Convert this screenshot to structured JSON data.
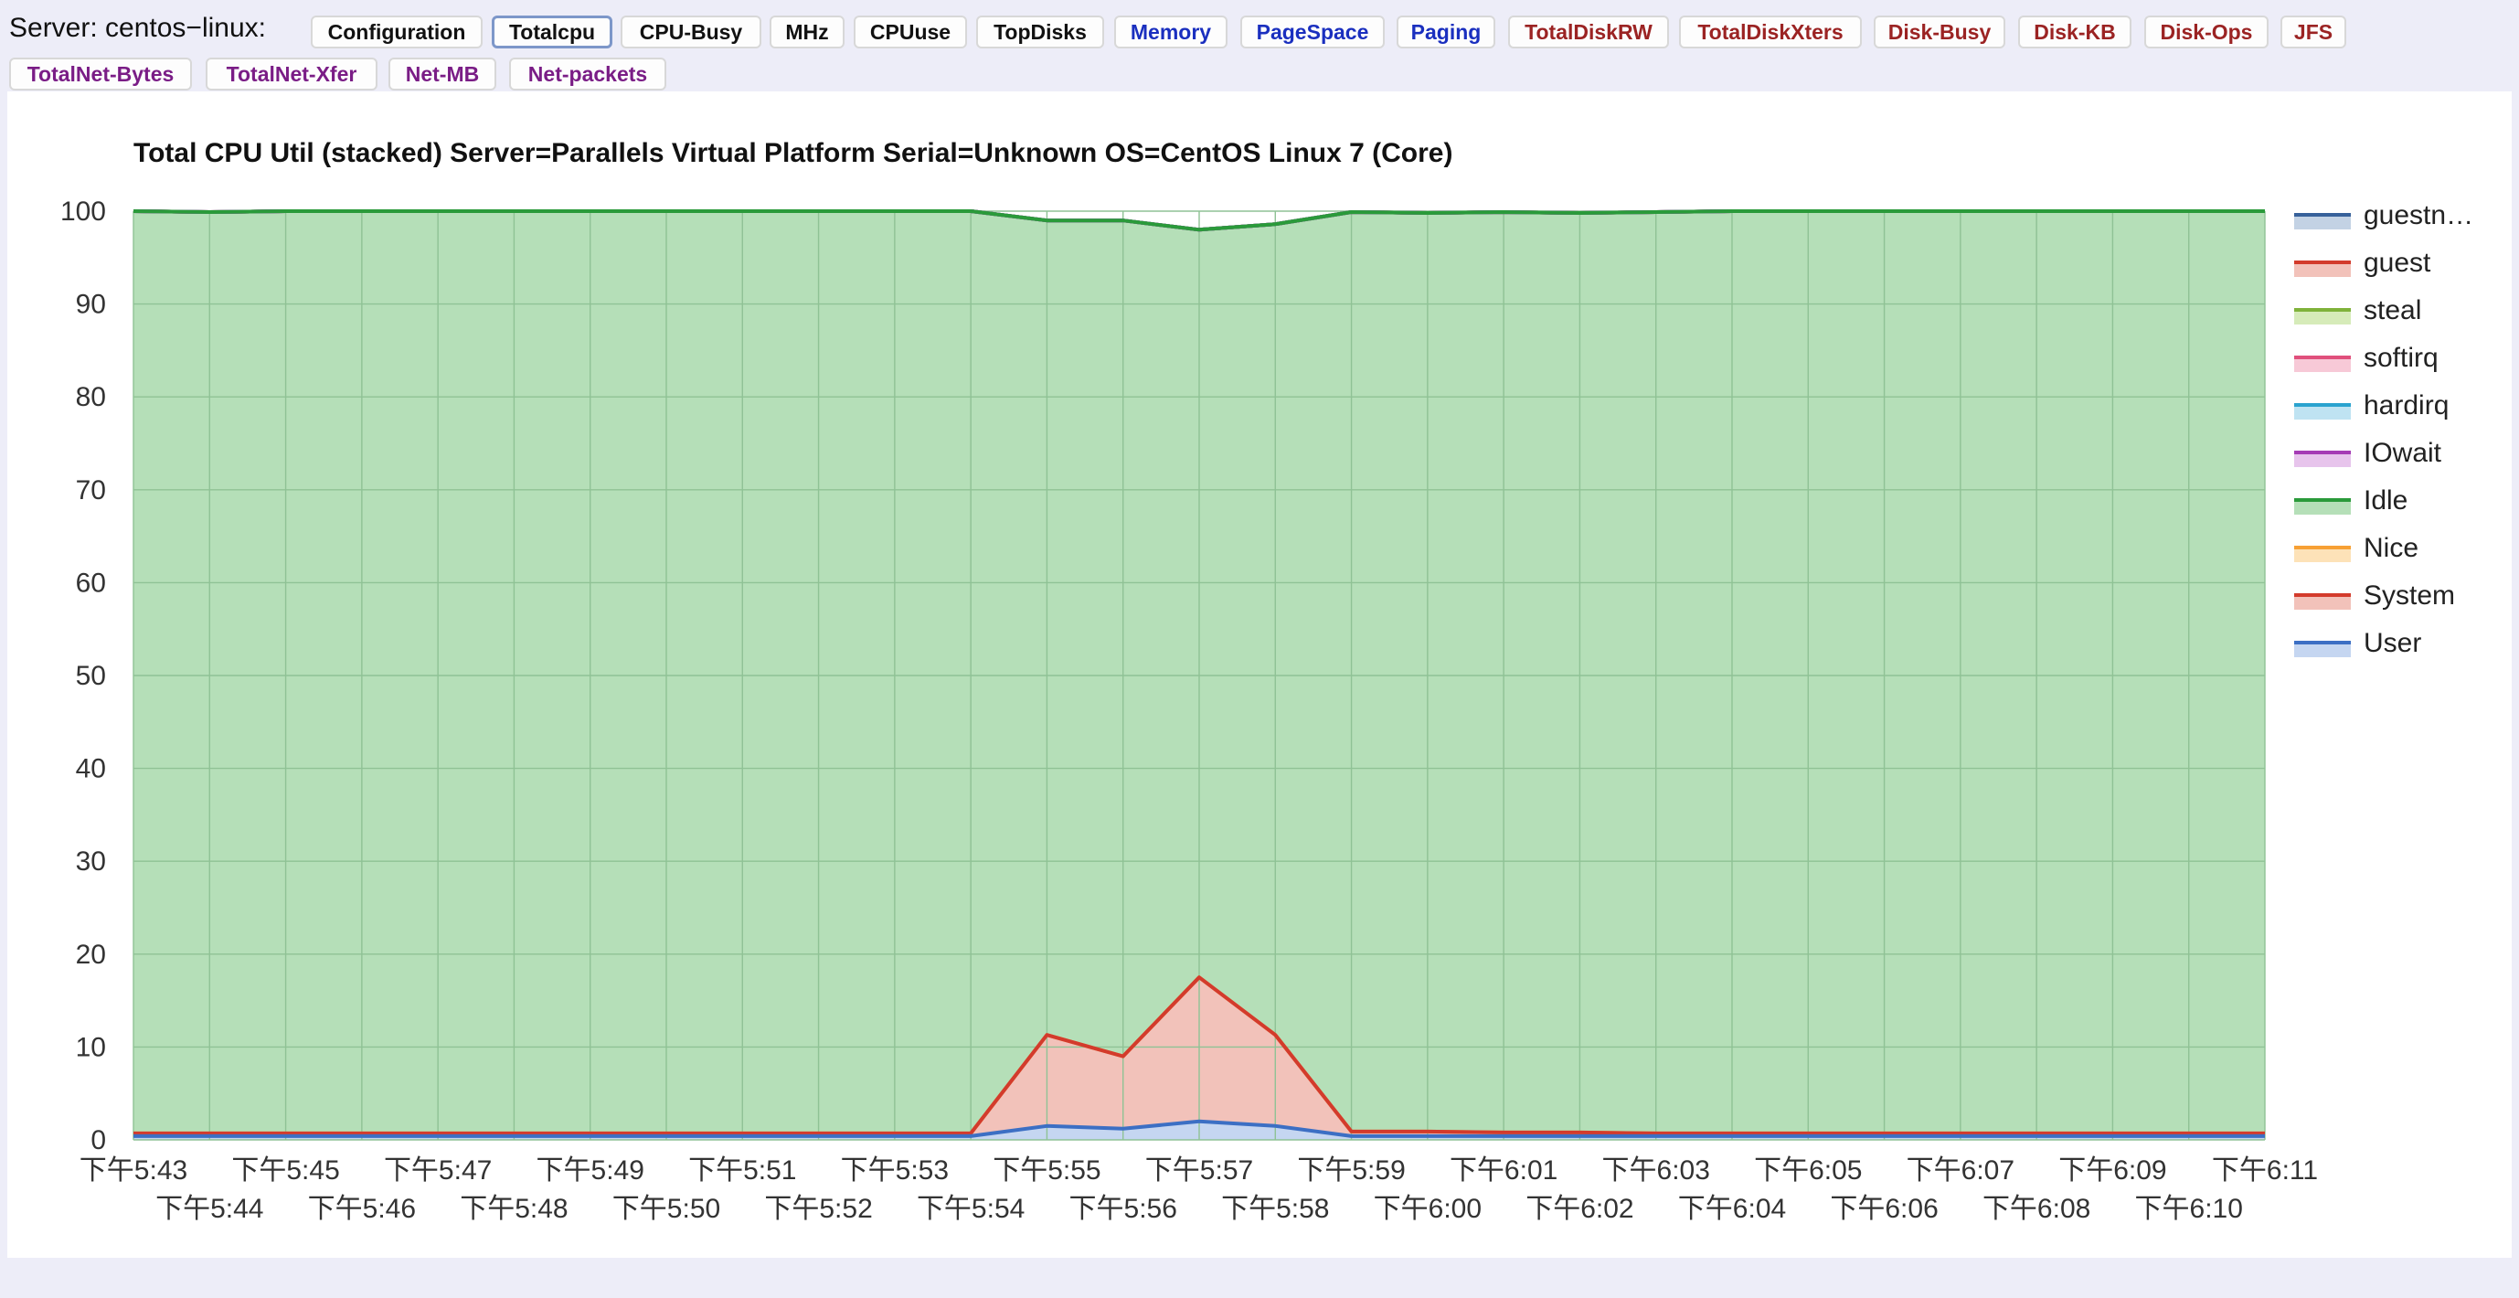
{
  "toolbar": {
    "server_label": "Server: centos−linux:",
    "buttons": [
      {
        "label": "Configuration",
        "color": "#111111",
        "active": false
      },
      {
        "label": "Totalcpu",
        "color": "#111111",
        "active": true
      },
      {
        "label": "CPU-Busy",
        "color": "#111111",
        "active": false
      },
      {
        "label": "MHz",
        "color": "#111111",
        "active": false
      },
      {
        "label": "CPUuse",
        "color": "#111111",
        "active": false
      },
      {
        "label": "TopDisks",
        "color": "#111111",
        "active": false
      },
      {
        "label": "Memory",
        "color": "#1a2fbf",
        "active": false
      },
      {
        "label": "PageSpace",
        "color": "#1a2fbf",
        "active": false
      },
      {
        "label": "Paging",
        "color": "#1a2fbf",
        "active": false
      },
      {
        "label": "TotalDiskRW",
        "color": "#9b2323",
        "active": false
      },
      {
        "label": "TotalDiskXters",
        "color": "#9b2323",
        "active": false
      },
      {
        "label": "Disk-Busy",
        "color": "#9b2323",
        "active": false
      },
      {
        "label": "Disk-KB",
        "color": "#9b2323",
        "active": false
      },
      {
        "label": "Disk-Ops",
        "color": "#9b2323",
        "active": false
      },
      {
        "label": "JFS",
        "color": "#9b2323",
        "active": false
      },
      {
        "label": "TotalNet-Bytes",
        "color": "#7a1d86",
        "active": false
      },
      {
        "label": "TotalNet-Xfer",
        "color": "#7a1d86",
        "active": false
      },
      {
        "label": "Net-MB",
        "color": "#7a1d86",
        "active": false
      },
      {
        "label": "Net-packets",
        "color": "#7a1d86",
        "active": false
      }
    ]
  },
  "chart_data": {
    "type": "area",
    "stacked": true,
    "title": "Total CPU Util (stacked) Server=Parallels Virtual Platform Serial=Unknown OS=CentOS Linux 7 (Core)",
    "xlabel": "",
    "ylabel": "",
    "ylim": [
      0,
      100
    ],
    "yticks": [
      0,
      10,
      20,
      30,
      40,
      50,
      60,
      70,
      80,
      90,
      100
    ],
    "grid": true,
    "legend_position": "right",
    "x": [
      "下午5:43",
      "下午5:44",
      "下午5:45",
      "下午5:46",
      "下午5:47",
      "下午5:48",
      "下午5:49",
      "下午5:50",
      "下午5:51",
      "下午5:52",
      "下午5:53",
      "下午5:54",
      "下午5:55",
      "下午5:56",
      "下午5:57",
      "下午5:58",
      "下午5:59",
      "下午6:00",
      "下午6:01",
      "下午6:02",
      "下午6:03",
      "下午6:04",
      "下午6:05",
      "下午6:06",
      "下午6:07",
      "下午6:08",
      "下午6:09",
      "下午6:10",
      "下午6:11"
    ],
    "series": [
      {
        "name": "User",
        "color": "#3c6fc4",
        "fill": "#c5d6f1",
        "values": [
          0.4,
          0.4,
          0.4,
          0.4,
          0.4,
          0.4,
          0.4,
          0.4,
          0.4,
          0.4,
          0.4,
          0.4,
          1.5,
          1.2,
          2.0,
          1.5,
          0.4,
          0.4,
          0.4,
          0.4,
          0.4,
          0.4,
          0.4,
          0.4,
          0.4,
          0.4,
          0.4,
          0.4,
          0.4
        ]
      },
      {
        "name": "System",
        "color": "#d33b2c",
        "fill": "#f2c2ba",
        "values": [
          0.3,
          0.3,
          0.3,
          0.3,
          0.3,
          0.3,
          0.3,
          0.3,
          0.3,
          0.3,
          0.3,
          0.3,
          9.8,
          7.8,
          15.5,
          9.8,
          0.5,
          0.5,
          0.4,
          0.4,
          0.3,
          0.3,
          0.3,
          0.3,
          0.3,
          0.3,
          0.3,
          0.3,
          0.3
        ]
      },
      {
        "name": "Nice",
        "color": "#f7a034",
        "fill": "#fde2b8",
        "values": [
          0,
          0,
          0,
          0,
          0,
          0,
          0,
          0,
          0,
          0,
          0,
          0,
          0,
          0,
          0,
          0,
          0,
          0,
          0,
          0,
          0,
          0,
          0,
          0,
          0,
          0,
          0,
          0,
          0
        ]
      },
      {
        "name": "Idle",
        "color": "#2a9a3a",
        "fill": "#b5dfb8",
        "values": [
          99.3,
          99.2,
          99.3,
          99.3,
          99.3,
          99.3,
          99.3,
          99.3,
          99.3,
          99.3,
          99.3,
          99.3,
          87.7,
          90.0,
          80.5,
          87.3,
          99.0,
          98.9,
          99.1,
          99.0,
          99.2,
          99.3,
          99.3,
          99.3,
          99.3,
          99.3,
          99.3,
          99.3,
          99.3
        ]
      },
      {
        "name": "IOwait",
        "color": "#a53bb5",
        "fill": "#e7c4ec",
        "values": [
          0,
          0,
          0,
          0,
          0,
          0,
          0,
          0,
          0,
          0,
          0,
          0,
          0,
          0,
          0,
          0,
          0,
          0,
          0,
          0,
          0,
          0,
          0,
          0,
          0,
          0,
          0,
          0,
          0
        ]
      },
      {
        "name": "hardirq",
        "color": "#2aa3cf",
        "fill": "#bfe3f2",
        "values": [
          0,
          0,
          0,
          0,
          0,
          0,
          0,
          0,
          0,
          0,
          0,
          0,
          0,
          0,
          0,
          0,
          0,
          0,
          0,
          0,
          0,
          0,
          0,
          0,
          0,
          0,
          0,
          0,
          0
        ]
      },
      {
        "name": "softirq",
        "color": "#e0507c",
        "fill": "#f7c9d7",
        "values": [
          0,
          0,
          0,
          0,
          0,
          0,
          0,
          0,
          0,
          0,
          0,
          0,
          0,
          0,
          0,
          0,
          0,
          0,
          0,
          0,
          0,
          0,
          0,
          0,
          0,
          0,
          0,
          0,
          0
        ]
      },
      {
        "name": "steal",
        "color": "#7fb23a",
        "fill": "#d6ebb9",
        "values": [
          0,
          0,
          0,
          0,
          0,
          0,
          0,
          0,
          0,
          0,
          0,
          0,
          0,
          0,
          0,
          0,
          0,
          0,
          0,
          0,
          0,
          0,
          0,
          0,
          0,
          0,
          0,
          0,
          0
        ]
      },
      {
        "name": "guest",
        "color": "#d33b2c",
        "fill": "#f2c2ba",
        "values": [
          0,
          0,
          0,
          0,
          0,
          0,
          0,
          0,
          0,
          0,
          0,
          0,
          0,
          0,
          0,
          0,
          0,
          0,
          0,
          0,
          0,
          0,
          0,
          0,
          0,
          0,
          0,
          0,
          0
        ]
      },
      {
        "name": "guestn…",
        "color": "#37619a",
        "fill": "#c3d2e4",
        "values": [
          0,
          0,
          0,
          0,
          0,
          0,
          0,
          0,
          0,
          0,
          0,
          0,
          0,
          0,
          0,
          0,
          0,
          0,
          0,
          0,
          0,
          0,
          0,
          0,
          0,
          0,
          0,
          0,
          0
        ]
      }
    ]
  }
}
